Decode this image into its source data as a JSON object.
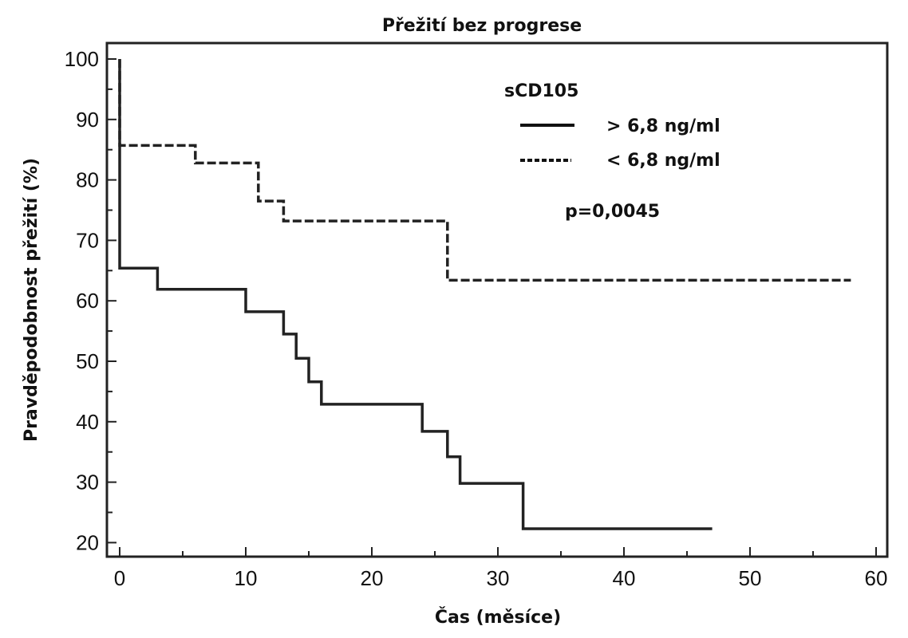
{
  "chart_data": {
    "type": "line",
    "title": "Přežití bez progrese",
    "xlabel": "Čas (měsíce)",
    "ylabel": "Pravděpodobnost přežití (%)",
    "xlim": [
      0,
      60
    ],
    "ylim": [
      20,
      100
    ],
    "x_ticks": [
      0,
      10,
      20,
      30,
      40,
      50,
      60
    ],
    "y_ticks": [
      20,
      30,
      40,
      50,
      60,
      70,
      80,
      90,
      100
    ],
    "step": true,
    "grid": false,
    "legend": {
      "title": "sCD105",
      "position": "top-right"
    },
    "annotation": "p=0,0045",
    "series": [
      {
        "name": "> 6,8 ng/ml",
        "line_style": "solid",
        "color": "#222222",
        "x": [
          0,
          0,
          3,
          10,
          13,
          14,
          15,
          16,
          24,
          26,
          27,
          32,
          47
        ],
        "y": [
          100,
          65.4,
          61.9,
          58.2,
          54.5,
          50.5,
          46.6,
          42.9,
          38.4,
          34.2,
          29.8,
          22.3,
          22.3
        ]
      },
      {
        "name": "< 6,8 ng/ml",
        "line_style": "dashed",
        "color": "#222222",
        "x": [
          0,
          0,
          6,
          11,
          13,
          26,
          58
        ],
        "y": [
          100,
          85.7,
          82.8,
          76.5,
          73.2,
          63.4,
          63.4
        ]
      }
    ]
  }
}
